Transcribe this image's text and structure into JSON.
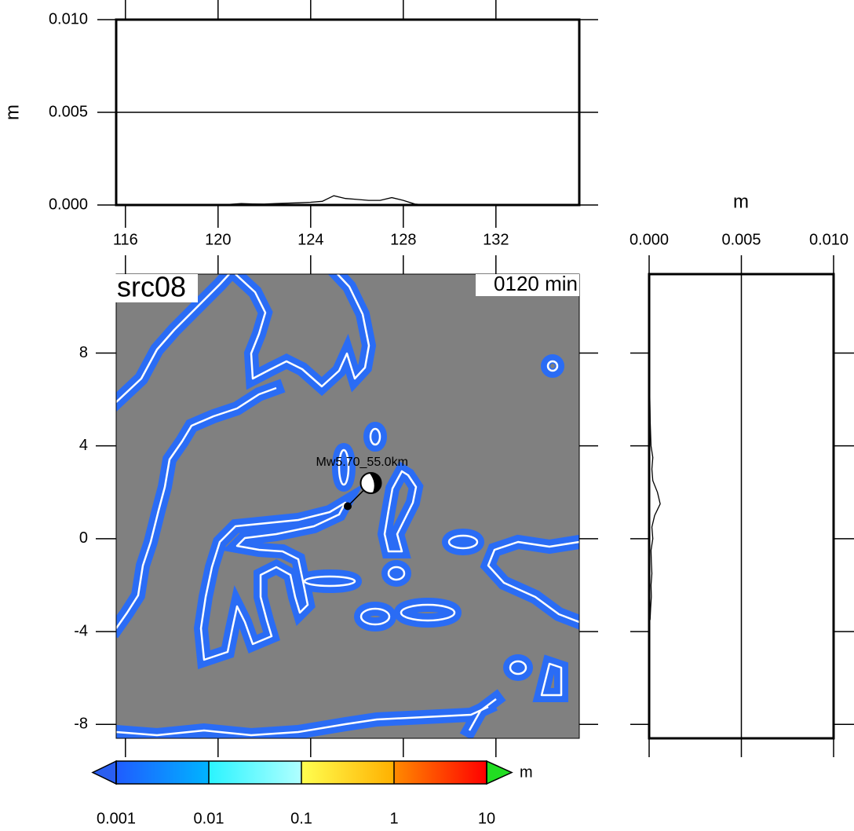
{
  "top_profile": {
    "ylabel": "m",
    "ylim": [
      0,
      0.01
    ],
    "yticks": [
      {
        "value": 0,
        "label": "0.000"
      },
      {
        "value": 0.005,
        "label": "0.005"
      },
      {
        "value": 0.01,
        "label": "0.010"
      }
    ],
    "x": [
      117,
      117.5,
      118,
      118.5,
      119,
      119.5,
      120,
      120.5,
      121,
      121.5,
      122,
      122.5,
      123,
      123.5,
      124,
      124.5,
      125,
      125.5,
      126,
      126.5,
      127,
      127.5,
      128,
      128.5,
      129
    ],
    "values": [
      0,
      0,
      1e-05,
      1e-05,
      2e-05,
      2e-05,
      3e-05,
      4e-05,
      8e-05,
      6e-05,
      5e-05,
      8e-05,
      0.0001,
      0.00012,
      0.00015,
      0.0002,
      0.0005,
      0.00035,
      0.0003,
      0.00025,
      0.00025,
      0.0004,
      0.00025,
      5e-05,
      0
    ],
    "grid": true
  },
  "map": {
    "xlim": [
      115.6,
      135.6
    ],
    "ylim": [
      -8.6,
      11.4
    ],
    "xticks": [
      116,
      120,
      124,
      128,
      132
    ],
    "yticks": [
      8,
      4,
      0,
      -4,
      -8
    ],
    "source_label": "src08",
    "time_label": "0120 min",
    "event_label": "Mw5.70_55.0km",
    "epicenter": {
      "lon": 125.6,
      "lat": 1.4
    },
    "mechanism": {
      "lon": 126.6,
      "lat": 2.4
    }
  },
  "side_profile": {
    "xlabel": "m",
    "xlim": [
      0,
      0.01
    ],
    "xticks": [
      {
        "value": 0,
        "label": "0.000"
      },
      {
        "value": 0.005,
        "label": "0.005"
      },
      {
        "value": 0.01,
        "label": "0.010"
      }
    ],
    "lat": [
      -3.5,
      -3,
      -2.5,
      -2,
      -1.5,
      -1,
      -0.5,
      0,
      0.5,
      1,
      1.5,
      2,
      2.5,
      3,
      3.5,
      4,
      4.5,
      5,
      5.5,
      6,
      6.5,
      7,
      7.5
    ],
    "values": [
      5e-05,
      8e-05,
      0.00012,
      0.0001,
      0.00015,
      0.00012,
      0.0001,
      0.0002,
      0.00015,
      0.0003,
      0.0006,
      0.00045,
      0.0002,
      0.00015,
      0.0002,
      0.0001,
      8e-05,
      6e-05,
      5e-05,
      4e-05,
      3e-05,
      2e-05,
      1e-05
    ],
    "grid": true
  },
  "colorbar": {
    "unit": "m",
    "log": true,
    "ticks": [
      0.001,
      0.01,
      0.1,
      1,
      10
    ]
  }
}
